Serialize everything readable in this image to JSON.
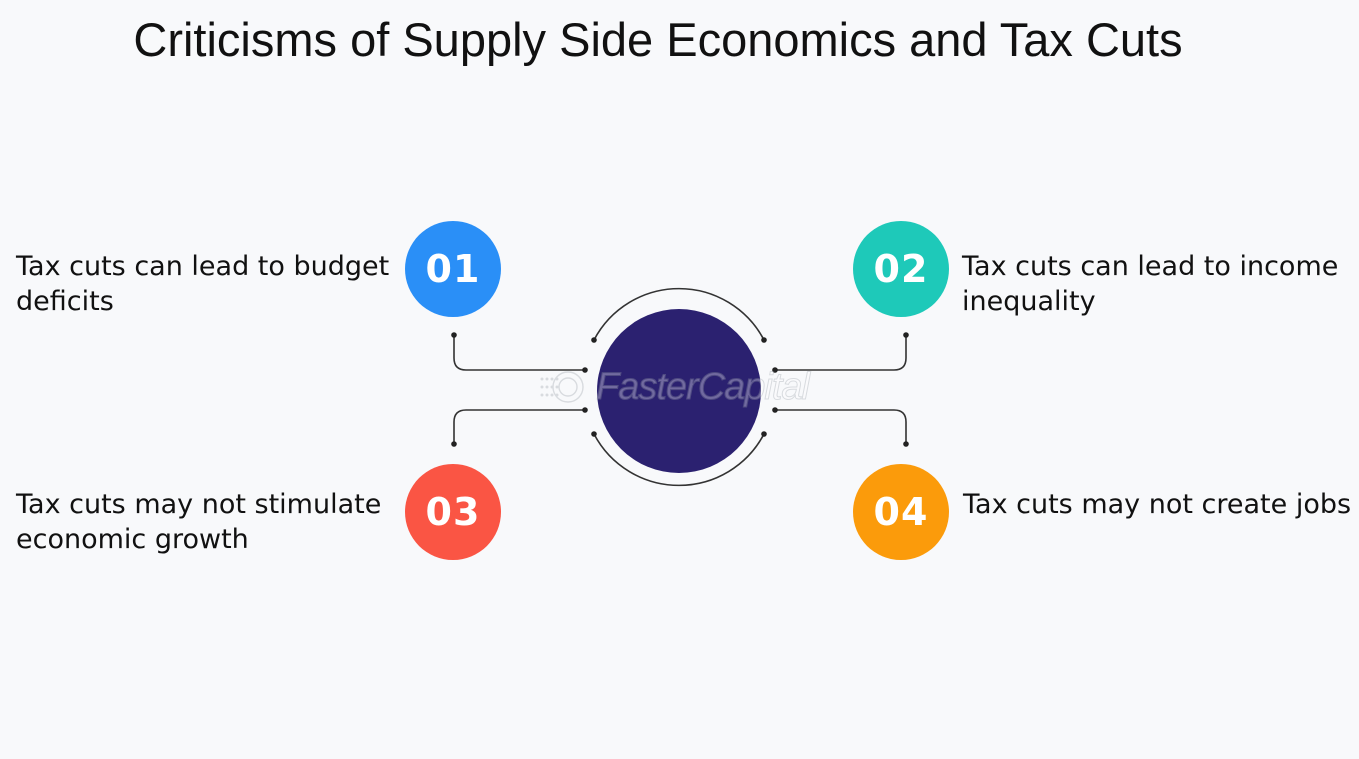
{
  "title": "Criticisms of Supply Side Economics and Tax Cuts",
  "items": [
    {
      "number": "01",
      "text": "Tax cuts can lead to budget deficits",
      "color": "#2a8ff7"
    },
    {
      "number": "02",
      "text": "Tax cuts can lead to income inequality",
      "color": "#1ec9b9"
    },
    {
      "number": "03",
      "text": "Tax cuts may not stimulate economic growth",
      "color": "#fa5544"
    },
    {
      "number": "04",
      "text": "Tax cuts may not create jobs",
      "color": "#fb9b0b"
    }
  ],
  "hub_color": "#2b2170",
  "watermark": "FasterCapital"
}
